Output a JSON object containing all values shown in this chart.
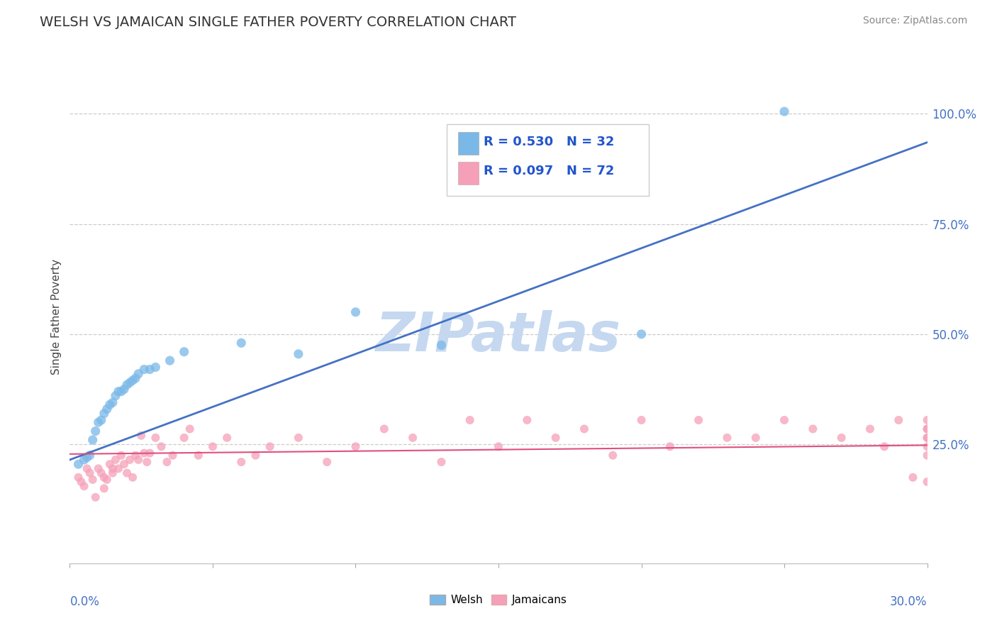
{
  "title": "WELSH VS JAMAICAN SINGLE FATHER POVERTY CORRELATION CHART",
  "source": "Source: ZipAtlas.com",
  "ylabel": "Single Father Poverty",
  "y_tick_labels": [
    "25.0%",
    "50.0%",
    "75.0%",
    "100.0%"
  ],
  "y_tick_vals": [
    0.25,
    0.5,
    0.75,
    1.0
  ],
  "xlim": [
    0.0,
    0.3
  ],
  "ylim": [
    -0.02,
    1.1
  ],
  "welsh_R": 0.53,
  "welsh_N": 32,
  "jamaican_R": 0.097,
  "jamaican_N": 72,
  "welsh_color": "#7ab8e8",
  "jamaican_color": "#f5a0b8",
  "welsh_line_color": "#4472c4",
  "jamaican_line_color": "#e05080",
  "legend_color": "#2255cc",
  "watermark": "ZIPatlas",
  "watermark_color": "#c5d8f0",
  "welsh_line_x": [
    0.0,
    0.3
  ],
  "welsh_line_y": [
    0.215,
    0.935
  ],
  "jamaican_line_x": [
    0.0,
    0.3
  ],
  "jamaican_line_y": [
    0.228,
    0.248
  ],
  "welsh_points_x": [
    0.003,
    0.005,
    0.006,
    0.007,
    0.008,
    0.009,
    0.01,
    0.011,
    0.012,
    0.013,
    0.014,
    0.015,
    0.016,
    0.017,
    0.018,
    0.019,
    0.02,
    0.021,
    0.022,
    0.023,
    0.024,
    0.026,
    0.028,
    0.03,
    0.035,
    0.04,
    0.06,
    0.08,
    0.1,
    0.13,
    0.2,
    0.25
  ],
  "welsh_points_y": [
    0.205,
    0.215,
    0.22,
    0.225,
    0.26,
    0.28,
    0.3,
    0.305,
    0.32,
    0.33,
    0.34,
    0.345,
    0.36,
    0.37,
    0.37,
    0.375,
    0.385,
    0.39,
    0.395,
    0.4,
    0.41,
    0.42,
    0.42,
    0.425,
    0.44,
    0.46,
    0.48,
    0.455,
    0.55,
    0.475,
    0.5,
    1.005
  ],
  "jamaican_points_x": [
    0.003,
    0.004,
    0.005,
    0.006,
    0.007,
    0.008,
    0.009,
    0.01,
    0.011,
    0.012,
    0.012,
    0.013,
    0.014,
    0.015,
    0.015,
    0.016,
    0.017,
    0.018,
    0.019,
    0.02,
    0.021,
    0.022,
    0.023,
    0.024,
    0.025,
    0.026,
    0.027,
    0.028,
    0.03,
    0.032,
    0.034,
    0.036,
    0.04,
    0.042,
    0.045,
    0.05,
    0.055,
    0.06,
    0.065,
    0.07,
    0.08,
    0.09,
    0.1,
    0.11,
    0.12,
    0.13,
    0.14,
    0.15,
    0.16,
    0.17,
    0.18,
    0.19,
    0.2,
    0.21,
    0.22,
    0.23,
    0.24,
    0.25,
    0.26,
    0.27,
    0.28,
    0.285,
    0.29,
    0.295,
    0.3,
    0.3,
    0.3,
    0.3,
    0.3,
    0.3,
    0.3,
    0.3
  ],
  "jamaican_points_y": [
    0.175,
    0.165,
    0.155,
    0.195,
    0.185,
    0.17,
    0.13,
    0.195,
    0.185,
    0.15,
    0.175,
    0.17,
    0.205,
    0.185,
    0.195,
    0.215,
    0.195,
    0.225,
    0.205,
    0.185,
    0.215,
    0.175,
    0.225,
    0.215,
    0.27,
    0.23,
    0.21,
    0.23,
    0.265,
    0.245,
    0.21,
    0.225,
    0.265,
    0.285,
    0.225,
    0.245,
    0.265,
    0.21,
    0.225,
    0.245,
    0.265,
    0.21,
    0.245,
    0.285,
    0.265,
    0.21,
    0.305,
    0.245,
    0.305,
    0.265,
    0.285,
    0.225,
    0.305,
    0.245,
    0.305,
    0.265,
    0.265,
    0.305,
    0.285,
    0.265,
    0.285,
    0.245,
    0.305,
    0.175,
    0.285,
    0.245,
    0.265,
    0.305,
    0.285,
    0.225,
    0.265,
    0.165
  ]
}
